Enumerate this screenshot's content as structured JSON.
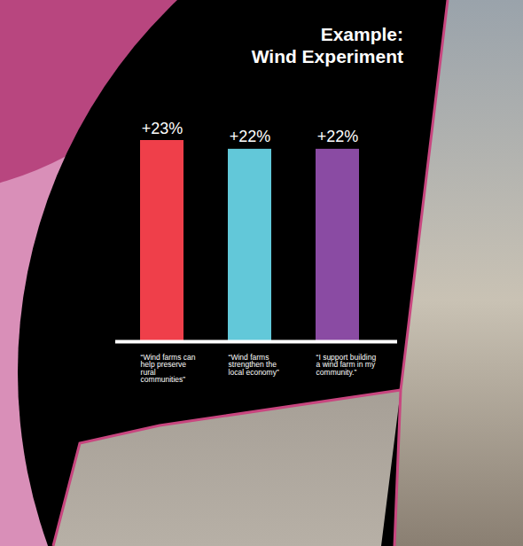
{
  "chart_data": {
    "type": "bar",
    "title": "Example:\nWind Experiment",
    "categories": [
      "“Wind farms can help preserve rural communities”",
      "“Wind farms strengthen the local economy”",
      "“I support building a wind farm in my community.”"
    ],
    "values": [
      23,
      22,
      22
    ],
    "value_labels": [
      "+23%",
      "+22%",
      "+22%"
    ],
    "colors": [
      "#ef3f4a",
      "#62c8d9",
      "#8a4ba3"
    ],
    "data_labels": true,
    "tick_labels": false
  }
}
